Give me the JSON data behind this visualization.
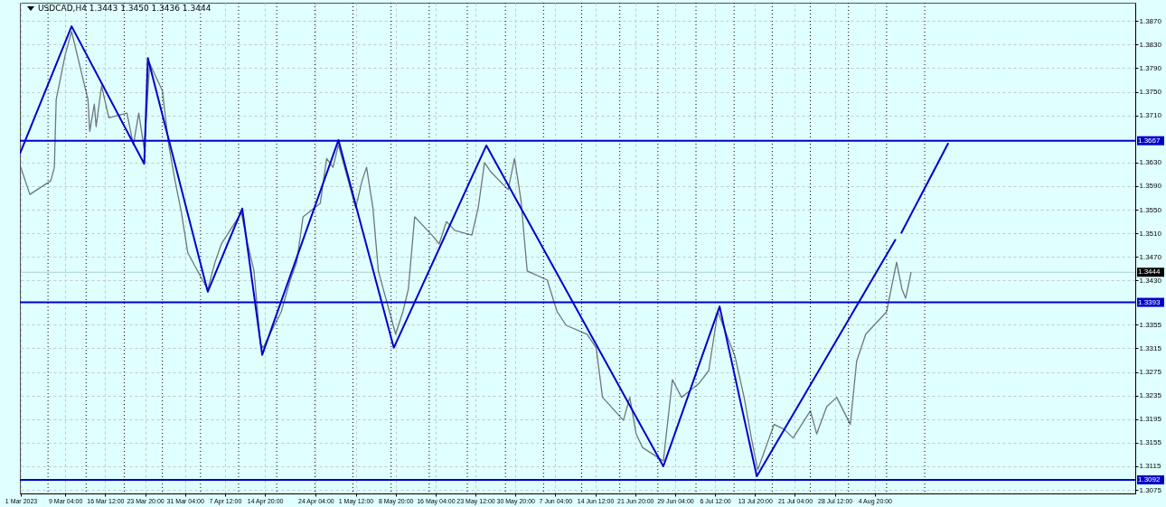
{
  "chart_data": {
    "type": "line",
    "title": "USDCAD,H4  1.3443 1.3450 1.3436 1.3444",
    "xlim": [
      "2023-02-28T20:00",
      "2023-09-21T16:00"
    ],
    "ylim": [
      1.3069,
      1.3901
    ],
    "xticks": [
      {
        "value": "2023-03-01T00:00",
        "label": "1 Mar 2023"
      },
      {
        "value": "2023-03-09T04:00",
        "label": "9 Mar 04:00"
      },
      {
        "value": "2023-03-16T12:00",
        "label": "16 Mar 12:00"
      },
      {
        "value": "2023-03-23T20:00",
        "label": "23 Mar 20:00"
      },
      {
        "value": "2023-03-31T04:00",
        "label": "31 Mar 04:00"
      },
      {
        "value": "2023-04-07T12:00",
        "label": "7 Apr 12:00"
      },
      {
        "value": "2023-04-14T20:00",
        "label": "14 Apr 20:00"
      },
      {
        "value": "2023-04-24T04:00",
        "label": "24 Apr 04:00"
      },
      {
        "value": "2023-05-01T12:00",
        "label": "1 May 12:00"
      },
      {
        "value": "2023-05-08T20:00",
        "label": "8 May 20:00"
      },
      {
        "value": "2023-05-16T04:00",
        "label": "16 May 04:00"
      },
      {
        "value": "2023-05-23T12:00",
        "label": "23 May 12:00"
      },
      {
        "value": "2023-05-30T20:00",
        "label": "30 May 20:00"
      },
      {
        "value": "2023-06-07T04:00",
        "label": "7 Jun 04:00"
      },
      {
        "value": "2023-06-14T12:00",
        "label": "14 Jun 12:00"
      },
      {
        "value": "2023-06-21T20:00",
        "label": "21 Jun 20:00"
      },
      {
        "value": "2023-06-29T04:00",
        "label": "29 Jun 04:00"
      },
      {
        "value": "2023-07-06T12:00",
        "label": "6 Jul 12:00"
      },
      {
        "value": "2023-07-13T20:00",
        "label": "13 Jul 20:00"
      },
      {
        "value": "2023-07-21T04:00",
        "label": "21 Jul 04:00"
      },
      {
        "value": "2023-07-28T12:00",
        "label": "28 Jul 12:00"
      },
      {
        "value": "2023-08-04T20:00",
        "label": "4 Aug 20:00"
      }
    ],
    "yticks": [
      {
        "value": 1.387,
        "label": "1.3870"
      },
      {
        "value": 1.383,
        "label": "1.3830"
      },
      {
        "value": 1.379,
        "label": "1.3790"
      },
      {
        "value": 1.375,
        "label": "1.3750"
      },
      {
        "value": 1.371,
        "label": "1.3710"
      },
      {
        "value": 1.363,
        "label": "1.3630"
      },
      {
        "value": 1.359,
        "label": "1.3590"
      },
      {
        "value": 1.355,
        "label": "1.3550"
      },
      {
        "value": 1.351,
        "label": "1.3510"
      },
      {
        "value": 1.347,
        "label": "1.3470"
      },
      {
        "value": 1.343,
        "label": "1.3430"
      },
      1.3355,
      1.3315,
      1.3275,
      1.3235,
      1.3195,
      1.3155,
      1.3115,
      1.3075
    ],
    "grid": true,
    "series": [
      {
        "color": "#6e7878",
        "x": [
          "2023-03-01T00:00",
          "2023-03-02T16:00",
          "2023-03-06T12:00",
          "2023-03-07T04:00",
          "2023-03-07T12:00",
          "2023-03-09T04:00",
          "2023-03-10T08:00",
          "2023-03-13T08:00",
          "2023-03-13T16:00",
          "2023-03-14T12:00",
          "2023-03-14T20:00",
          "2023-03-15T20:00",
          "2023-03-17T04:00",
          "2023-03-20T12:00",
          "2023-03-21T16:00",
          "2023-03-22T16:00",
          "2023-03-23T16:00",
          "2023-03-24T16:00",
          "2023-03-27T00:00",
          "2023-03-28T04:00",
          "2023-03-29T08:00",
          "2023-03-30T12:00",
          "2023-03-31T16:00",
          "2023-04-03T20:00",
          "2023-04-04T08:00",
          "2023-04-05T16:00",
          "2023-04-06T20:00",
          "2023-04-10T12:00",
          "2023-04-11T16:00",
          "2023-04-12T20:00",
          "2023-04-14T00:00",
          "2023-04-14T12:00",
          "2023-04-17T20:00",
          "2023-04-19T12:00",
          "2023-04-20T16:00",
          "2023-04-21T20:00",
          "2023-04-25T00:00",
          "2023-04-26T04:00",
          "2023-04-27T08:00",
          "2023-04-28T08:00",
          "2023-05-01T12:00",
          "2023-05-02T16:00",
          "2023-05-03T12:00",
          "2023-05-04T16:00",
          "2023-05-05T16:00",
          "2023-05-08T20:00",
          "2023-05-10T04:00",
          "2023-05-11T04:00",
          "2023-05-12T08:00",
          "2023-05-15T12:00",
          "2023-05-16T20:00",
          "2023-05-18T04:00",
          "2023-05-19T16:00",
          "2023-05-22T20:00",
          "2023-05-24T00:00",
          "2023-05-25T04:00",
          "2023-05-26T08:00",
          "2023-05-29T12:00",
          "2023-05-30T16:00",
          "2023-05-31T20:00",
          "2023-06-02T00:00",
          "2023-06-05T16:00",
          "2023-06-07T12:00",
          "2023-06-09T04:00",
          "2023-06-13T00:00",
          "2023-06-14T16:00",
          "2023-06-15T20:00",
          "2023-06-19T16:00",
          "2023-06-20T20:00",
          "2023-06-22T00:00",
          "2023-06-23T04:00",
          "2023-06-27T00:00",
          "2023-06-28T16:00",
          "2023-06-30T08:00",
          "2023-07-03T12:00",
          "2023-07-05T08:00",
          "2023-07-07T00:00",
          "2023-07-10T04:00",
          "2023-07-11T20:00",
          "2023-07-13T04:00",
          "2023-07-14T08:00",
          "2023-07-17T08:00",
          "2023-07-19T04:00",
          "2023-07-20T20:00",
          "2023-07-24T00:00",
          "2023-07-25T04:00",
          "2023-07-27T00:00",
          "2023-07-28T20:00",
          "2023-07-31T08:00",
          "2023-08-01T12:00",
          "2023-08-03T04:00",
          "2023-08-07T00:00",
          "2023-08-08T20:00",
          "2023-08-09T20:00",
          "2023-08-10T12:00",
          "2023-08-11T12:00"
        ],
        "values": [
          1.3622,
          1.3576,
          1.3599,
          1.3622,
          1.3737,
          1.3813,
          1.3852,
          1.3737,
          1.3683,
          1.3729,
          1.3691,
          1.376,
          1.3706,
          1.3714,
          1.366,
          1.3714,
          1.3653,
          1.3798,
          1.3752,
          1.366,
          1.3599,
          1.3545,
          1.3477,
          1.3423,
          1.3415,
          1.3461,
          1.3492,
          1.3545,
          1.3492,
          1.3446,
          1.3323,
          1.3316,
          1.3377,
          1.3431,
          1.3461,
          1.3538,
          1.3561,
          1.3637,
          1.3622,
          1.366,
          1.3553,
          1.3599,
          1.3622,
          1.3553,
          1.3446,
          1.3339,
          1.3377,
          1.3415,
          1.3538,
          1.3507,
          1.3492,
          1.353,
          1.3515,
          1.3507,
          1.3553,
          1.363,
          1.3614,
          1.3584,
          1.3637,
          1.3568,
          1.3446,
          1.3431,
          1.3377,
          1.3354,
          1.3339,
          1.3316,
          1.3232,
          1.3193,
          1.3232,
          1.317,
          1.3147,
          1.3124,
          1.3262,
          1.3232,
          1.3255,
          1.3277,
          1.3377,
          1.3301,
          1.3232,
          1.3163,
          1.3109,
          1.3186,
          1.3178,
          1.3163,
          1.3209,
          1.317,
          1.3216,
          1.3232,
          1.3186,
          1.3293,
          1.3339,
          1.3377,
          1.3461,
          1.3415,
          1.34,
          1.3444
        ]
      },
      {
        "color": "#0000cd",
        "x": [
          "2023-02-28T20:00",
          "2023-03-10T08:00",
          "2023-03-23T16:00",
          "2023-03-24T08:00",
          "2023-04-04T08:00",
          "2023-04-10T16:00",
          "2023-04-14T08:00",
          "2023-04-28T08:00",
          "2023-05-08T12:00",
          "2023-05-25T12:00",
          "2023-06-27T00:00",
          "2023-07-07T08:00",
          "2023-07-14T04:00",
          "2023-08-08T16:00"
        ],
        "values": [
          1.3645,
          1.3861,
          1.3628,
          1.3807,
          1.3411,
          1.3552,
          1.3304,
          1.3668,
          1.3316,
          1.3659,
          1.3115,
          1.3386,
          1.3098,
          1.35
        ]
      },
      {
        "color": "#0000cd",
        "x": [
          "2023-08-09T16:00",
          "2023-08-18T08:00"
        ],
        "values": [
          1.351,
          1.3663
        ]
      }
    ],
    "ref_lines": [
      {
        "axis": "y",
        "value": 1.3667,
        "label": "1.3667",
        "color": "#0000cd"
      },
      {
        "axis": "y",
        "value": 1.3393,
        "label": "1.3393",
        "color": "#0000cd"
      },
      {
        "axis": "y",
        "value": 1.3092,
        "label": "1.3092",
        "color": "#0000cd"
      },
      {
        "axis": "y",
        "value": 1.3444,
        "label": "1.3444",
        "color": "#000000"
      },
      {
        "axis": "x",
        "value": "2023-03-06",
        "color": "#000000",
        "line_style": "dotted"
      },
      {
        "axis": "x",
        "value": "2023-03-13",
        "color": "#000000",
        "line_style": "dotted"
      },
      {
        "axis": "x",
        "value": "2023-03-20",
        "color": "#000000",
        "line_style": "dotted"
      },
      {
        "axis": "x",
        "value": "2023-03-27",
        "color": "#000000",
        "line_style": "dotted"
      },
      {
        "axis": "x",
        "value": "2023-04-03",
        "color": "#000000",
        "line_style": "dotted"
      },
      {
        "axis": "x",
        "value": "2023-04-10",
        "color": "#000000",
        "line_style": "dotted"
      },
      {
        "axis": "x",
        "value": "2023-04-17",
        "color": "#000000",
        "line_style": "dotted"
      },
      {
        "axis": "x",
        "value": "2023-04-24",
        "color": "#000000",
        "line_style": "dotted"
      },
      {
        "axis": "x",
        "value": "2023-05-01",
        "color": "#000000",
        "line_style": "dotted"
      },
      {
        "axis": "x",
        "value": "2023-05-08",
        "color": "#000000",
        "line_style": "dotted"
      },
      {
        "axis": "x",
        "value": "2023-05-15",
        "color": "#000000",
        "line_style": "dotted"
      },
      {
        "axis": "x",
        "value": "2023-05-22",
        "color": "#000000",
        "line_style": "dotted"
      },
      {
        "axis": "x",
        "value": "2023-05-29",
        "color": "#000000",
        "line_style": "dotted"
      },
      {
        "axis": "x",
        "value": "2023-06-05",
        "color": "#000000",
        "line_style": "dotted"
      },
      {
        "axis": "x",
        "value": "2023-06-12",
        "color": "#000000",
        "line_style": "dotted"
      },
      {
        "axis": "x",
        "value": "2023-06-19",
        "color": "#000000",
        "line_style": "dotted"
      },
      {
        "axis": "x",
        "value": "2023-06-26",
        "color": "#000000",
        "line_style": "dotted"
      },
      {
        "axis": "x",
        "value": "2023-07-03",
        "color": "#000000",
        "line_style": "dotted"
      },
      {
        "axis": "x",
        "value": "2023-07-10",
        "color": "#000000",
        "line_style": "dotted"
      },
      {
        "axis": "x",
        "value": "2023-07-17",
        "color": "#000000",
        "line_style": "dotted"
      },
      {
        "axis": "x",
        "value": "2023-07-24",
        "color": "#000000",
        "line_style": "dotted"
      },
      {
        "axis": "x",
        "value": "2023-07-31",
        "color": "#000000",
        "line_style": "dotted"
      },
      {
        "axis": "x",
        "value": "2023-08-07",
        "color": "#000000",
        "line_style": "dotted"
      },
      {
        "axis": "x",
        "value": "2023-08-14",
        "color": "#000000",
        "line_style": "dotted"
      }
    ]
  }
}
